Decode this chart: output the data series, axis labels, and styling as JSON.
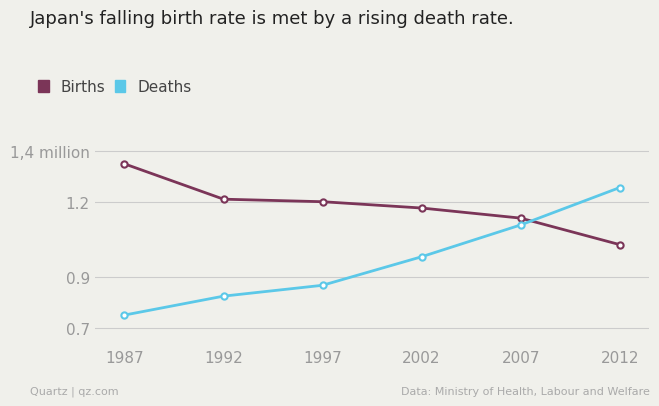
{
  "title": "Japan's falling birth rate is met by a rising death rate.",
  "years": [
    1987,
    1992,
    1997,
    2002,
    2007,
    2012
  ],
  "births": [
    1.35,
    1.21,
    1.2,
    1.175,
    1.135,
    1.03
  ],
  "deaths": [
    0.751,
    0.826,
    0.869,
    0.982,
    1.108,
    1.256
  ],
  "births_color": "#7b3558",
  "deaths_color": "#5bc8e8",
  "background_color": "#f0f0eb",
  "title_fontsize": 13,
  "label_fontsize": 11,
  "tick_fontsize": 11,
  "yticks": [
    0.7,
    0.9,
    1.2,
    1.4
  ],
  "ytick_labels": [
    "0.7",
    "0.9",
    "1.2",
    "1,4 million"
  ],
  "ylim": [
    0.63,
    1.46
  ],
  "xlim": [
    1985.5,
    2013.5
  ],
  "xticks": [
    1987,
    1992,
    1997,
    2002,
    2007,
    2012
  ],
  "footer_left": "Quartz | qz.com",
  "footer_right": "Data: Ministry of Health, Labour and Welfare",
  "legend_births": "Births",
  "legend_deaths": "Deaths"
}
